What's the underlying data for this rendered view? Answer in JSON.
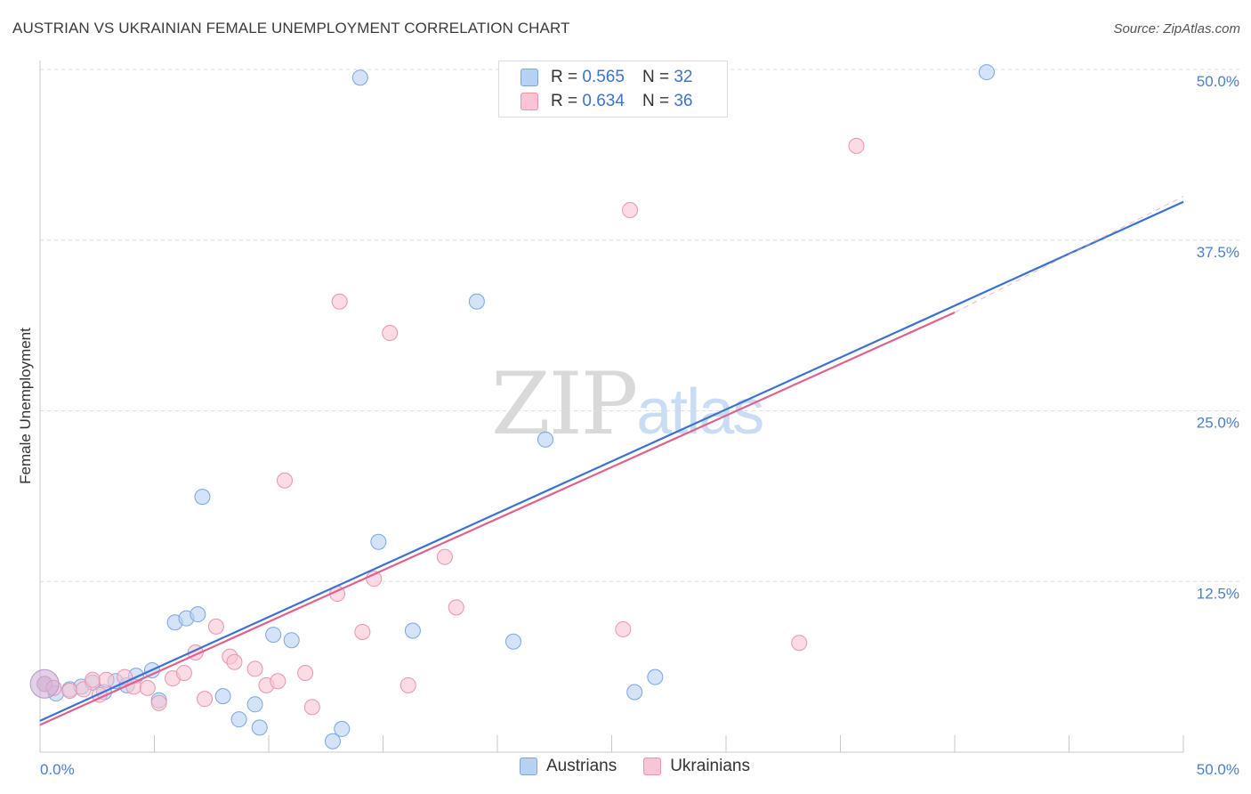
{
  "title": "AUSTRIAN VS UKRAINIAN FEMALE UNEMPLOYMENT CORRELATION CHART",
  "source": "Source: ZipAtlas.com",
  "watermark": {
    "zip": "ZIP",
    "atlas": "atlas"
  },
  "legend": {
    "austrians": {
      "r_label": "R = ",
      "r": "0.565",
      "n_label": "N = ",
      "n": "32",
      "name": "Austrians"
    },
    "ukrainians": {
      "r_label": "R = ",
      "r": "0.634",
      "n_label": "N = ",
      "n": "36",
      "name": "Ukrainians"
    }
  },
  "colors": {
    "blue_fill": "#b7d1f3",
    "blue_stroke": "#7aa6e0",
    "blue_line": "#3a72d4",
    "pink_fill": "#f9c4d3",
    "pink_stroke": "#ec93ae",
    "pink_line": "#e0608e",
    "axis_text": "#4a7fd0",
    "grid": "#dedede"
  },
  "chart_data": {
    "type": "scatter",
    "title": "AUSTRIAN VS UKRAINIAN FEMALE UNEMPLOYMENT CORRELATION CHART",
    "xlabel": "",
    "ylabel": "Female Unemployment",
    "xlim": [
      0,
      50
    ],
    "ylim": [
      0,
      50
    ],
    "x_tick_labels": [
      "0.0%",
      "50.0%"
    ],
    "y_ticks": [
      12.5,
      25.0,
      37.5,
      50.0
    ],
    "y_tick_labels": [
      "12.5%",
      "25.0%",
      "37.5%",
      "50.0%"
    ],
    "grid": true,
    "series": [
      {
        "name": "Austrians",
        "r": 0.565,
        "n": 32,
        "trend": {
          "x": [
            0,
            50
          ],
          "y": [
            2.3,
            40.3
          ]
        },
        "points": [
          [
            0.2,
            5.0
          ],
          [
            0.7,
            4.3
          ],
          [
            1.3,
            4.6
          ],
          [
            1.8,
            4.8
          ],
          [
            2.3,
            5.1
          ],
          [
            2.8,
            4.4
          ],
          [
            3.3,
            5.2
          ],
          [
            3.8,
            4.9
          ],
          [
            4.2,
            5.6
          ],
          [
            4.9,
            6.0
          ],
          [
            5.2,
            3.8
          ],
          [
            5.9,
            9.5
          ],
          [
            6.4,
            9.8
          ],
          [
            6.9,
            10.1
          ],
          [
            7.1,
            18.7
          ],
          [
            8.0,
            4.1
          ],
          [
            8.7,
            2.4
          ],
          [
            9.4,
            3.5
          ],
          [
            9.6,
            1.8
          ],
          [
            10.2,
            8.6
          ],
          [
            11.0,
            8.2
          ],
          [
            12.8,
            0.8
          ],
          [
            13.2,
            1.7
          ],
          [
            14.0,
            49.4
          ],
          [
            14.8,
            15.4
          ],
          [
            16.3,
            8.9
          ],
          [
            19.1,
            33.0
          ],
          [
            20.7,
            8.1
          ],
          [
            22.1,
            22.9
          ],
          [
            26.0,
            4.4
          ],
          [
            26.9,
            5.5
          ],
          [
            41.4,
            49.8
          ]
        ]
      },
      {
        "name": "Ukrainians",
        "r": 0.634,
        "n": 36,
        "trend": {
          "x": [
            0,
            40.0
          ],
          "y": [
            2.0,
            32.2
          ]
        },
        "trend_extension": {
          "x": [
            40.0,
            50
          ],
          "y": [
            32.2,
            40.7
          ]
        },
        "points": [
          [
            0.2,
            5.0
          ],
          [
            0.6,
            4.7
          ],
          [
            1.3,
            4.5
          ],
          [
            1.9,
            4.6
          ],
          [
            2.3,
            5.3
          ],
          [
            2.6,
            4.2
          ],
          [
            2.9,
            5.3
          ],
          [
            3.7,
            5.5
          ],
          [
            4.1,
            4.8
          ],
          [
            4.7,
            4.7
          ],
          [
            5.2,
            3.6
          ],
          [
            5.8,
            5.4
          ],
          [
            6.3,
            5.8
          ],
          [
            6.8,
            7.3
          ],
          [
            7.2,
            3.9
          ],
          [
            7.7,
            9.2
          ],
          [
            8.3,
            7.0
          ],
          [
            8.5,
            6.6
          ],
          [
            9.4,
            6.1
          ],
          [
            9.9,
            4.9
          ],
          [
            10.4,
            5.2
          ],
          [
            10.7,
            19.9
          ],
          [
            11.6,
            5.8
          ],
          [
            11.9,
            3.3
          ],
          [
            13.0,
            11.6
          ],
          [
            13.1,
            33.0
          ],
          [
            14.1,
            8.8
          ],
          [
            14.6,
            12.7
          ],
          [
            15.3,
            30.7
          ],
          [
            16.1,
            4.9
          ],
          [
            17.7,
            14.3
          ],
          [
            18.2,
            10.6
          ],
          [
            25.5,
            9.0
          ],
          [
            25.8,
            39.7
          ],
          [
            33.2,
            8.0
          ],
          [
            35.7,
            44.4
          ]
        ]
      }
    ]
  }
}
